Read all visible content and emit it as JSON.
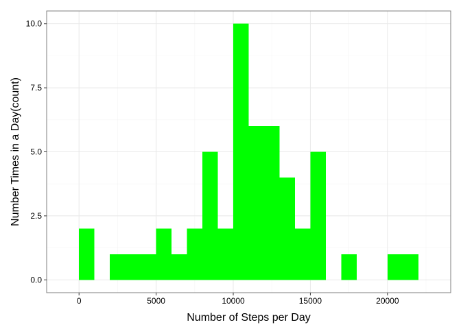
{
  "chart_data": {
    "type": "bar",
    "subtype": "histogram",
    "title": "",
    "xlabel": "Number of Steps per Day",
    "ylabel": "Number Times in a Day(count)",
    "xlim": [
      -2100,
      24100
    ],
    "ylim": [
      -0.5,
      10.5
    ],
    "xticks": [
      0,
      5000,
      10000,
      15000,
      20000
    ],
    "yticks": [
      0.0,
      2.5,
      5.0,
      7.5,
      10.0
    ],
    "xtick_labels": [
      "0",
      "5000",
      "10000",
      "15000",
      "20000"
    ],
    "ytick_labels": [
      "0.0",
      "2.5",
      "5.0",
      "7.5",
      "10.0"
    ],
    "bin_width": 1000,
    "bins": [
      {
        "x0": 0,
        "x1": 1000,
        "count": 2
      },
      {
        "x0": 2000,
        "x1": 3000,
        "count": 1
      },
      {
        "x0": 3000,
        "x1": 4000,
        "count": 1
      },
      {
        "x0": 4000,
        "x1": 5000,
        "count": 1
      },
      {
        "x0": 5000,
        "x1": 6000,
        "count": 2
      },
      {
        "x0": 6000,
        "x1": 7000,
        "count": 1
      },
      {
        "x0": 7000,
        "x1": 8000,
        "count": 2
      },
      {
        "x0": 8000,
        "x1": 9000,
        "count": 5
      },
      {
        "x0": 9000,
        "x1": 10000,
        "count": 2
      },
      {
        "x0": 10000,
        "x1": 11000,
        "count": 10
      },
      {
        "x0": 11000,
        "x1": 12000,
        "count": 6
      },
      {
        "x0": 12000,
        "x1": 13000,
        "count": 6
      },
      {
        "x0": 13000,
        "x1": 14000,
        "count": 4
      },
      {
        "x0": 14000,
        "x1": 15000,
        "count": 2
      },
      {
        "x0": 15000,
        "x1": 16000,
        "count": 5
      },
      {
        "x0": 17000,
        "x1": 18000,
        "count": 1
      },
      {
        "x0": 20000,
        "x1": 21000,
        "count": 1
      },
      {
        "x0": 21000,
        "x1": 22000,
        "count": 1
      }
    ],
    "grid": true,
    "legend": "none",
    "colors": {
      "bar": "#00ff00",
      "grid_major": "#e8e8e8",
      "grid_minor": "#f4f4f4",
      "panel_border": "#7f7f7f",
      "background": "#ffffff"
    }
  }
}
